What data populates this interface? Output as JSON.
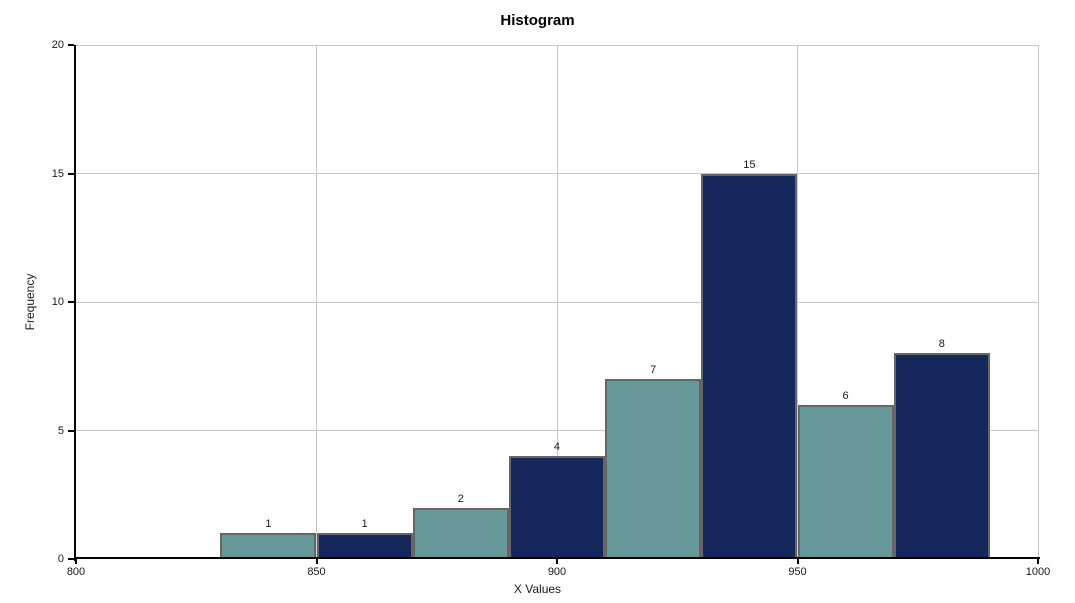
{
  "chart_data": {
    "type": "bar",
    "subtype": "histogram",
    "title": "Histogram",
    "xlabel": "X Values",
    "ylabel": "Frequency",
    "bin_edges": [
      830,
      850,
      870,
      890,
      910,
      930,
      950,
      970,
      990
    ],
    "counts": [
      1,
      1,
      2,
      4,
      7,
      15,
      6,
      8
    ],
    "xlim": [
      800,
      1000
    ],
    "ylim": [
      0,
      20
    ],
    "x_ticks": [
      800,
      850,
      900,
      950,
      1000
    ],
    "y_ticks": [
      0,
      5,
      10,
      15,
      20
    ],
    "grid": true,
    "legend_position": "none",
    "colors": {
      "bar_fill_alternating": [
        "#679899",
        "#16275c"
      ],
      "bar_border": "#666666",
      "gridline": "#c9c9c9",
      "axis": "#000000",
      "text": "#1a1a1a"
    }
  }
}
